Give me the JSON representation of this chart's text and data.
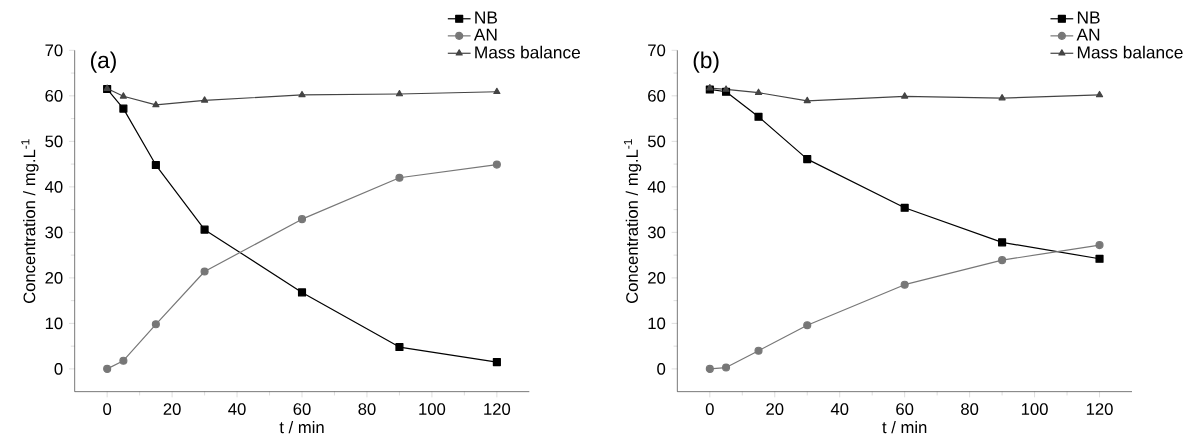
{
  "chart_data": [
    {
      "type": "line",
      "title": "(a)",
      "xlabel": "t / min",
      "ylabel": "Concentration / mg.L$^{-1}$",
      "x": [
        0,
        5,
        15,
        30,
        60,
        90,
        120
      ],
      "xlim": [
        -10,
        130
      ],
      "ylim": [
        -5,
        70
      ],
      "xticks": [
        0,
        20,
        40,
        60,
        80,
        100,
        120
      ],
      "yticks": [
        0,
        10,
        20,
        30,
        40,
        50,
        60,
        70
      ],
      "legend": "top right",
      "grid": false,
      "series": [
        {
          "name": "NB",
          "color": "#000000",
          "marker": "square",
          "values": [
            61.5,
            57.2,
            44.8,
            30.6,
            16.8,
            4.8,
            1.5
          ]
        },
        {
          "name": "AN",
          "color": "#777777",
          "marker": "circle",
          "values": [
            0,
            1.8,
            9.8,
            21.4,
            32.9,
            42.0,
            44.9
          ]
        },
        {
          "name": "Mass balance",
          "color": "#444444",
          "marker": "triangle",
          "values": [
            61.6,
            59.9,
            58.0,
            59.0,
            60.2,
            60.4,
            60.9
          ]
        }
      ]
    },
    {
      "type": "line",
      "title": "(b)",
      "xlabel": "t / min",
      "ylabel": "Concentration / mg.L$^{-1}$",
      "x": [
        0,
        5,
        15,
        30,
        60,
        90,
        120
      ],
      "xlim": [
        -10,
        130
      ],
      "ylim": [
        -5,
        70
      ],
      "xticks": [
        0,
        20,
        40,
        60,
        80,
        100,
        120
      ],
      "yticks": [
        0,
        10,
        20,
        30,
        40,
        50,
        60,
        70
      ],
      "legend": "top right",
      "grid": false,
      "series": [
        {
          "name": "NB",
          "color": "#000000",
          "marker": "square",
          "values": [
            61.4,
            60.9,
            55.4,
            46.1,
            35.4,
            27.8,
            24.2
          ]
        },
        {
          "name": "AN",
          "color": "#777777",
          "marker": "circle",
          "values": [
            0,
            0.3,
            4.0,
            9.6,
            18.5,
            23.9,
            27.2
          ]
        },
        {
          "name": "Mass balance",
          "color": "#444444",
          "marker": "triangle",
          "values": [
            61.7,
            61.4,
            60.7,
            58.9,
            59.9,
            59.5,
            60.2
          ]
        }
      ]
    }
  ]
}
